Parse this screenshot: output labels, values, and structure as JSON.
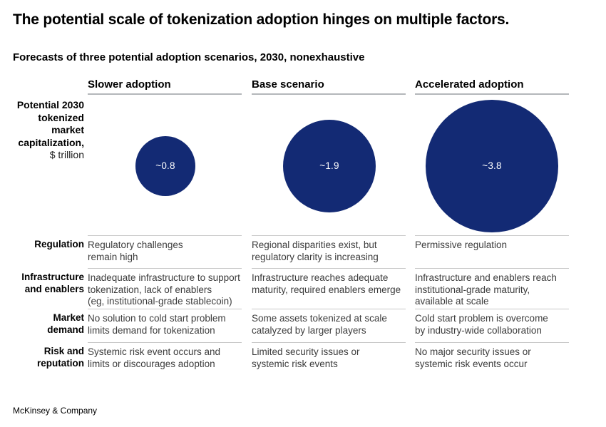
{
  "title": "The potential scale of tokenization adoption hinges on multiple factors.",
  "subtitle": "Forecasts of three potential adoption scenarios, 2030, nonexhaustive",
  "footer": "McKinsey & Company",
  "axis_label": {
    "main": "Potential 2030\ntokenized\nmarket\ncapitalization,",
    "unit": "$ trillion"
  },
  "chart_data": {
    "type": "bubble",
    "title": "Forecasts of three potential adoption scenarios, 2030, nonexhaustive",
    "unit": "$ trillion",
    "categories": [
      "Slower adoption",
      "Base scenario",
      "Accelerated adoption"
    ],
    "values": [
      0.8,
      1.9,
      3.8
    ],
    "value_labels": [
      "~0.8",
      "~1.9",
      "~3.8"
    ],
    "bubble_color": "#132a74",
    "value_label_color": "#ffffff",
    "area_proportional": true,
    "legend_position": "none",
    "rows": [
      {
        "label": "Regulation",
        "cells": [
          "Regulatory challenges\nremain high",
          "Regional disparities exist, but\nregulatory clarity is increasing",
          "Permissive regulation"
        ]
      },
      {
        "label": "Infrastructure\nand enablers",
        "cells": [
          "Inadequate infrastructure to support\ntokenization, lack of enablers\n(eg, institutional-grade stablecoin)",
          "Infrastructure reaches adequate\nmaturity, required enablers emerge",
          "Infrastructure and enablers reach\ninstitutional-grade maturity,\navailable at scale"
        ]
      },
      {
        "label": "Market\ndemand",
        "cells": [
          "No solution to cold start problem\nlimits demand for tokenization",
          "Some assets tokenized at scale\ncatalyzed by larger players",
          "Cold start problem is overcome\nby industry-wide collaboration"
        ]
      },
      {
        "label": "Risk and\nreputation",
        "cells": [
          "Systemic risk event occurs and\nlimits or discourages adoption",
          "Limited security issues or\nsystemic risk events",
          "No major security issues or\nsystemic risk events occur"
        ]
      }
    ]
  }
}
